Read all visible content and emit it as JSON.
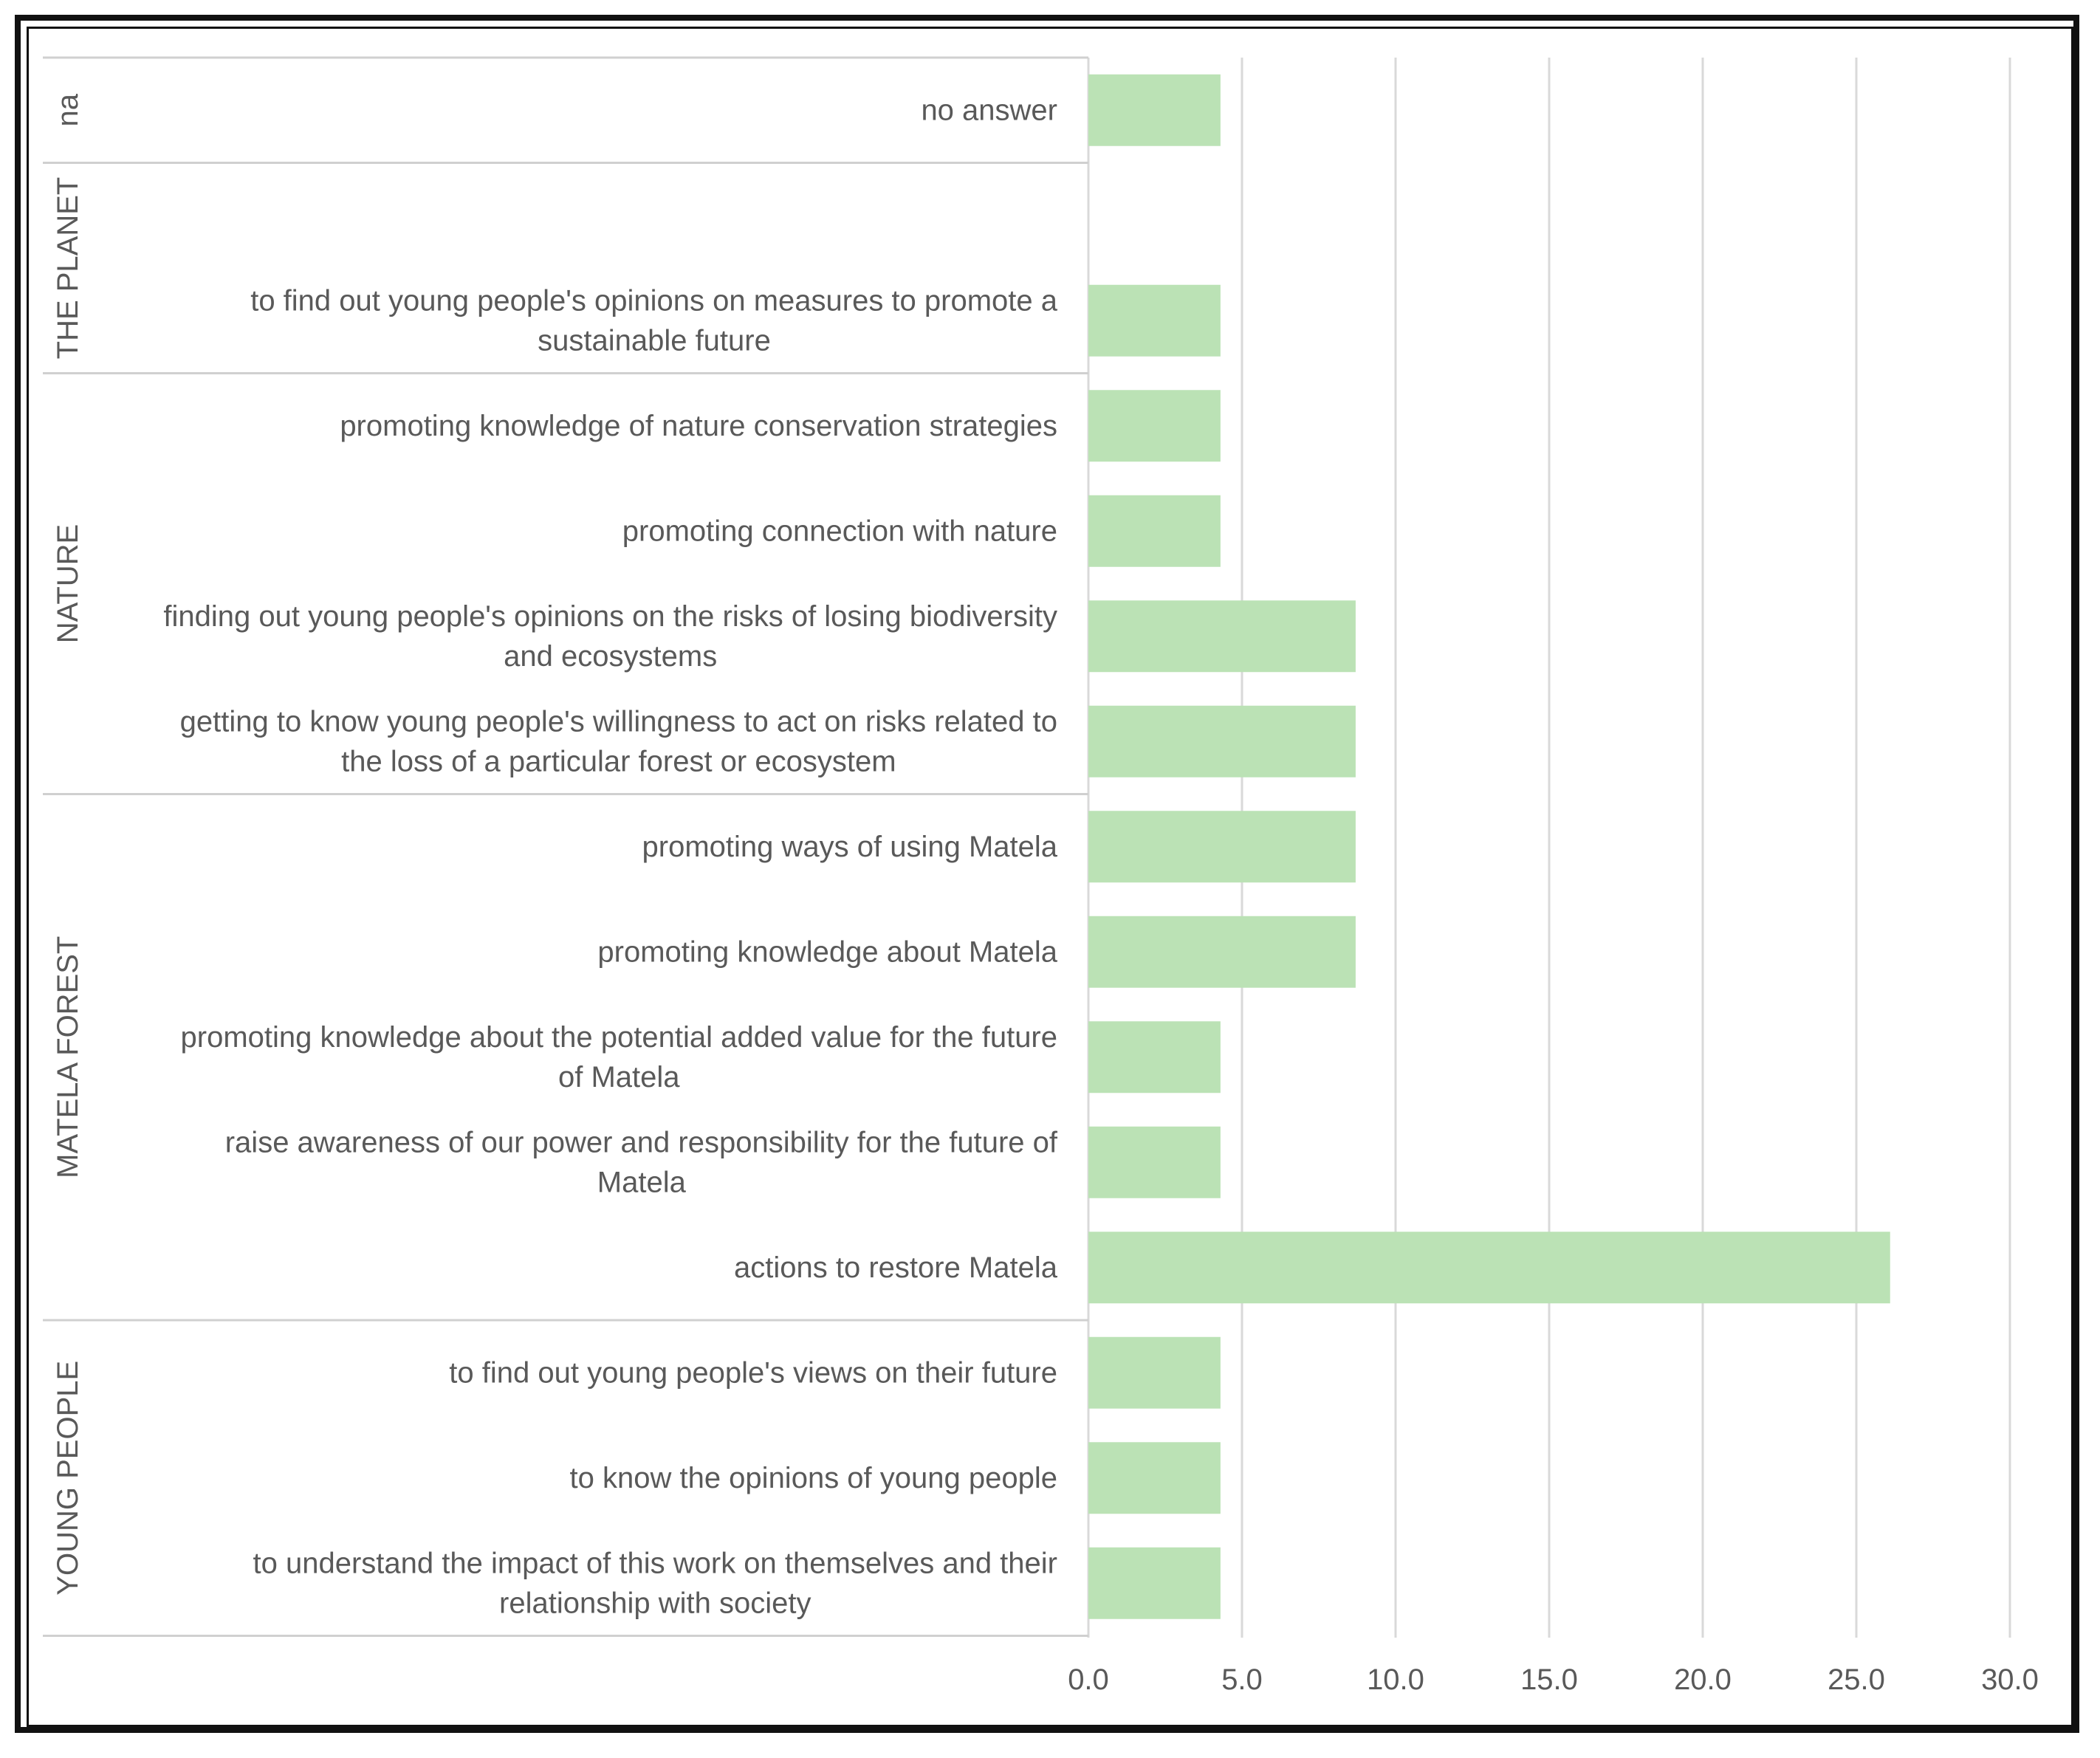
{
  "chart_data": {
    "type": "bar",
    "orientation": "horizontal",
    "title": "",
    "xlabel": "",
    "ylabel": "",
    "xlim": [
      0,
      30
    ],
    "x_ticks": [
      "0.0",
      "5.0",
      "10.0",
      "15.0",
      "20.0",
      "25.0",
      "30.0"
    ],
    "grid": true,
    "bar_color": "#bbe2b5",
    "groups": [
      {
        "name": "na",
        "rows": [
          {
            "label": [
              "no answer"
            ],
            "value": 4.3
          }
        ]
      },
      {
        "name": "THE PLANET",
        "rows": [
          {
            "label": [],
            "value": null
          },
          {
            "label": [
              "to find out young people's opinions on measures to promote a",
              "sustainable future"
            ],
            "value": 4.3
          }
        ]
      },
      {
        "name": "NATURE",
        "rows": [
          {
            "label": [
              "promoting knowledge of nature conservation strategies"
            ],
            "value": 4.3
          },
          {
            "label": [
              "promoting connection with nature"
            ],
            "value": 4.3
          },
          {
            "label": [
              "finding out young people's opinions on the risks of losing biodiversity",
              "and ecosystems"
            ],
            "value": 8.7
          },
          {
            "label": [
              "getting to know young people's willingness to act on risks related to",
              "the loss of a particular forest or ecosystem"
            ],
            "value": 8.7
          }
        ]
      },
      {
        "name": "MATELA FOREST",
        "rows": [
          {
            "label": [
              "promoting ways of using Matela"
            ],
            "value": 8.7
          },
          {
            "label": [
              "promoting knowledge about Matela"
            ],
            "value": 8.7
          },
          {
            "label": [
              "promoting knowledge about the potential added value for the future",
              "of Matela"
            ],
            "value": 4.3
          },
          {
            "label": [
              "raise awareness of our power and responsibility for the future of",
              "Matela"
            ],
            "value": 4.3
          },
          {
            "label": [
              "actions to restore Matela"
            ],
            "value": 26.1
          }
        ]
      },
      {
        "name": "YOUNG PEOPLE",
        "rows": [
          {
            "label": [
              "to find out young people's views on their future"
            ],
            "value": 4.3
          },
          {
            "label": [
              "to know the opinions of young people"
            ],
            "value": 4.3
          },
          {
            "label": [
              "to understand the impact of this work on themselves and their",
              "relationship with society"
            ],
            "value": 4.3
          }
        ]
      }
    ]
  }
}
